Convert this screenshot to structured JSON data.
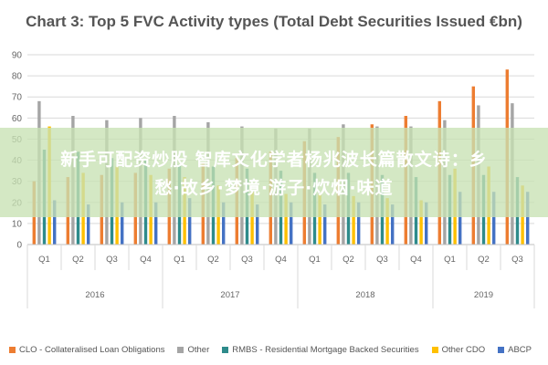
{
  "chart_data": {
    "type": "bar",
    "title": "Chart 3: Top 5 FVC Activity types (Total Debt Securities Issued €bn)",
    "ylim": [
      0,
      90
    ],
    "yticks": [
      0,
      10,
      20,
      30,
      40,
      50,
      60,
      70,
      80,
      90
    ],
    "grid": true,
    "legend_position": "bottom",
    "categories": [
      "Q1",
      "Q2",
      "Q3",
      "Q4",
      "Q1",
      "Q2",
      "Q3",
      "Q4",
      "Q1",
      "Q2",
      "Q3",
      "Q4",
      "Q1",
      "Q2",
      "Q3"
    ],
    "years": [
      {
        "label": "2016",
        "quarters": 4
      },
      {
        "label": "2017",
        "quarters": 4
      },
      {
        "label": "2018",
        "quarters": 4
      },
      {
        "label": "2019",
        "quarters": 3
      }
    ],
    "series": [
      {
        "name": "CLO - Collateralised Loan Obligations",
        "color": "#ed7d31",
        "values": [
          30,
          32,
          33,
          34,
          36,
          39,
          41,
          44,
          49,
          51,
          57,
          61,
          68,
          75,
          83
        ]
      },
      {
        "name": "Other",
        "color": "#a5a5a5",
        "values": [
          68,
          61,
          59,
          60,
          61,
          58,
          56,
          55,
          55,
          57,
          56,
          56,
          59,
          66,
          67
        ]
      },
      {
        "name": "RMBS - Residential Mortgage Backed Securities",
        "color": "#2e8b8b",
        "values": [
          45,
          44,
          41,
          40,
          38,
          37,
          36,
          35,
          34,
          34,
          33,
          32,
          33,
          33,
          32
        ]
      },
      {
        "name": "Other CDO",
        "color": "#ffc000",
        "values": [
          56,
          34,
          37,
          33,
          32,
          28,
          25,
          24,
          24,
          23,
          22,
          21,
          36,
          37,
          28
        ]
      },
      {
        "name": "ABCP",
        "color": "#4472c4",
        "values": [
          21,
          19,
          20,
          20,
          22,
          20,
          19,
          20,
          19,
          20,
          19,
          20,
          25,
          25,
          25
        ]
      }
    ]
  },
  "overlay": {
    "line1": "新手可配资炒股 智库文化学者杨兆波长篇散文诗：乡",
    "line2": "愁·故乡·梦境·游子·炊烟·味道"
  }
}
